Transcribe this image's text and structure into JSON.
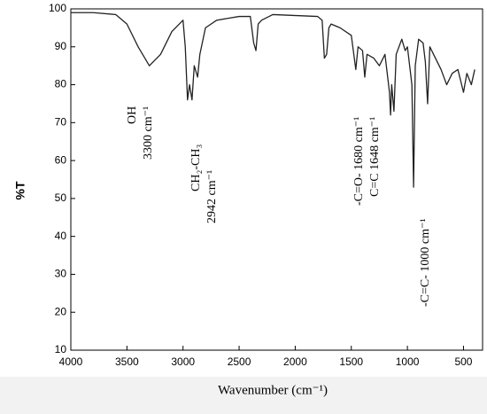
{
  "chart_data": {
    "type": "line",
    "ylabel": "%T",
    "xlabel": "Wavenumber (cm⁻¹)",
    "annotations": [
      "OH",
      "3300 cm⁻¹",
      "CH₂-CH₃",
      "2942 cm⁻¹",
      "-C=O- 1680 cm⁻¹",
      "C=C  1648 cm⁻¹",
      "-C=C- 1000 cm⁻¹"
    ],
    "x": [
      4000,
      3800,
      3600,
      3500,
      3400,
      3300,
      3200,
      3100,
      3000,
      2980,
      2960,
      2942,
      2920,
      2900,
      2870,
      2850,
      2800,
      2700,
      2500,
      2400,
      2370,
      2350,
      2330,
      2300,
      2200,
      1800,
      1760,
      1740,
      1720,
      1700,
      1680,
      1600,
      1500,
      1460,
      1440,
      1400,
      1380,
      1360,
      1300,
      1250,
      1200,
      1160,
      1150,
      1140,
      1120,
      1100,
      1050,
      1020,
      1000,
      960,
      945,
      930,
      900,
      860,
      840,
      820,
      800,
      700,
      650,
      600,
      550,
      500,
      470,
      430,
      400
    ],
    "series": [
      {
        "color": "#222222",
        "values": [
          99,
          99,
          98.5,
          96,
          90,
          85,
          88,
          94,
          97,
          90,
          76,
          80,
          76,
          85,
          82,
          88,
          95,
          97,
          98,
          98,
          91,
          89,
          96,
          97,
          98.5,
          98,
          97,
          87,
          88,
          95,
          96,
          95,
          93,
          84,
          90,
          89,
          82,
          88,
          87,
          85,
          88,
          78,
          72,
          80,
          73,
          88,
          92,
          89,
          90,
          80,
          53,
          85,
          92,
          91,
          86,
          75,
          90,
          84,
          80,
          83,
          84,
          78,
          83,
          80,
          84
        ]
      }
    ],
    "xlim": [
      4000,
      330
    ],
    "ylim": [
      10,
      100
    ],
    "xticks": [
      4000,
      3500,
      3000,
      2500,
      2000,
      1500,
      1000,
      500
    ],
    "yticks": [
      10,
      20,
      30,
      40,
      50,
      60,
      70,
      80,
      90,
      100
    ]
  }
}
